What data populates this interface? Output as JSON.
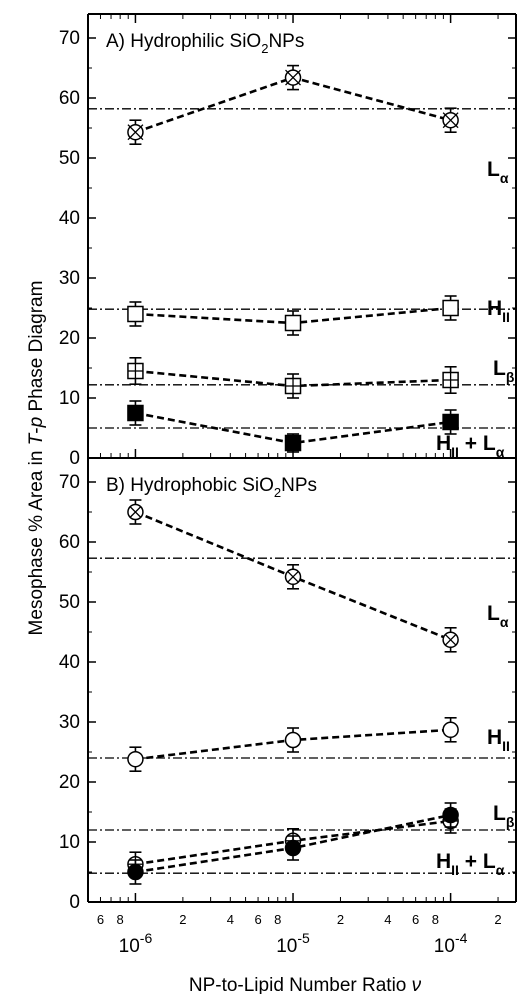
{
  "figure": {
    "ylabel_parts": [
      "Mesophase % Area in ",
      "T",
      "-",
      "p",
      " Phase Diagram"
    ],
    "xlabel_parts": [
      "NP-to-Lipid Number Ratio ",
      "ν"
    ]
  },
  "chart_data": [
    {
      "type": "scatter",
      "panel": "A",
      "title_parts": [
        "A) Hydrophilic SiO",
        "2",
        "NPs"
      ],
      "x_scale": "log",
      "xlim": [
        5e-07,
        0.00026
      ],
      "ylim": [
        0,
        74
      ],
      "y_ticks": [
        0,
        10,
        20,
        30,
        40,
        50,
        60,
        70
      ],
      "x_major_ticks": [
        1e-06,
        1e-05,
        0.0001
      ],
      "grid": false,
      "series": [
        {
          "label": [
            "L",
            "α"
          ],
          "marker": "boxed-x",
          "reference": 58.2,
          "x": [
            1e-06,
            1e-05,
            0.0001
          ],
          "y": [
            54.3,
            63.4,
            56.3
          ],
          "err": [
            2.0,
            2.0,
            2.0
          ]
        },
        {
          "label": [
            "H",
            "II"
          ],
          "marker": "open-square",
          "reference": 24.8,
          "x": [
            1e-06,
            1e-05,
            0.0001
          ],
          "y": [
            24.0,
            22.5,
            25.0
          ],
          "err": [
            2.0,
            2.0,
            2.0
          ]
        },
        {
          "label": [
            "L",
            "β"
          ],
          "marker": "plus-square",
          "reference": 12.2,
          "x": [
            1e-06,
            1e-05,
            0.0001
          ],
          "y": [
            14.5,
            12.0,
            13.0
          ],
          "err": [
            2.2,
            2.0,
            2.2
          ]
        },
        {
          "label": [
            "H",
            "II",
            " + L",
            "α"
          ],
          "marker": "filled-square",
          "reference": 5.0,
          "x": [
            1e-06,
            1e-05,
            0.0001
          ],
          "y": [
            7.5,
            2.5,
            6.0
          ],
          "err": [
            2.0,
            1.5,
            2.0
          ]
        }
      ]
    },
    {
      "type": "scatter",
      "panel": "B",
      "title_parts": [
        "B) Hydrophobic SiO",
        "2",
        "NPs"
      ],
      "x_scale": "log",
      "xlim": [
        5e-07,
        0.00026
      ],
      "ylim": [
        0,
        74
      ],
      "y_ticks": [
        0,
        10,
        20,
        30,
        40,
        50,
        60,
        70
      ],
      "x_major_ticks": [
        1e-06,
        1e-05,
        0.0001
      ],
      "x_tick_labels": [
        [
          "10",
          "-6"
        ],
        [
          "10",
          "-5"
        ],
        [
          "10",
          "-4"
        ]
      ],
      "x_minor_labels": [
        "6",
        "8",
        "2",
        "4",
        "6",
        "8",
        "2",
        "4",
        "6",
        "8",
        "2"
      ],
      "grid": false,
      "series": [
        {
          "label": [
            "L",
            "α"
          ],
          "marker": "circle-x",
          "reference": 57.3,
          "x": [
            1e-06,
            1e-05,
            0.0001
          ],
          "y": [
            65.0,
            54.2,
            43.7
          ],
          "err": [
            2.0,
            2.0,
            2.0
          ]
        },
        {
          "label": [
            "H",
            "II"
          ],
          "marker": "open-circle",
          "reference": 24.0,
          "x": [
            1e-06,
            1e-05,
            0.0001
          ],
          "y": [
            23.8,
            27.0,
            28.7
          ],
          "err": [
            2.0,
            2.0,
            2.0
          ]
        },
        {
          "label": [
            "L",
            "β"
          ],
          "marker": "circle-plus",
          "reference": 12.0,
          "x": [
            1e-06,
            1e-05,
            0.0001
          ],
          "y": [
            6.3,
            10.2,
            13.5
          ],
          "err": [
            2.0,
            2.0,
            2.0
          ]
        },
        {
          "label": [
            "H",
            "II",
            " + L",
            "α"
          ],
          "marker": "filled-circle",
          "reference": 4.8,
          "x": [
            1e-06,
            1e-05,
            0.0001
          ],
          "y": [
            5.0,
            9.0,
            14.5
          ],
          "err": [
            2.0,
            2.0,
            2.0
          ]
        }
      ]
    }
  ]
}
